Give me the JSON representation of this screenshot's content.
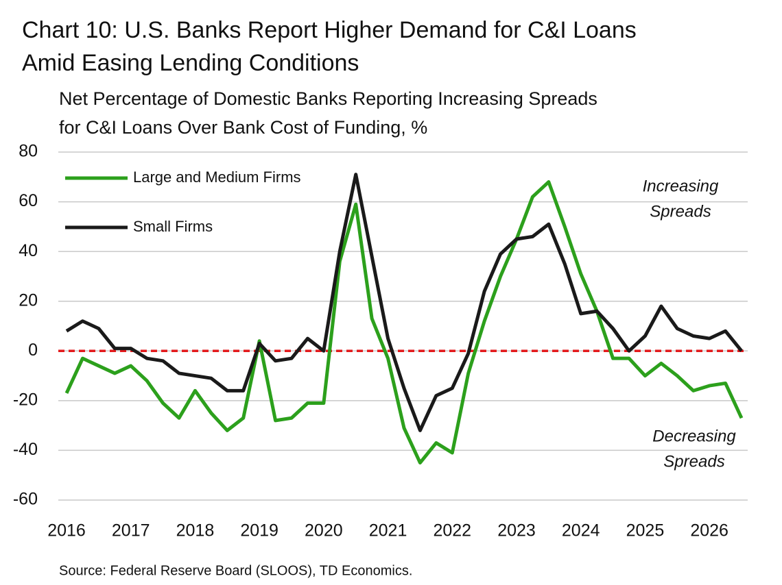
{
  "chart_data": {
    "type": "line",
    "title": [
      "Chart 10: U.S. Banks Report Higher Demand for C&I Loans",
      "Amid Easing Lending Conditions"
    ],
    "subtitle": [
      "Net Percentage of Domestic Banks Reporting Increasing Spreads",
      "for C&I Loans Over Bank Cost of Funding, %"
    ],
    "source": "Source: Federal Reserve Board (SLOOS), TD Economics.",
    "annotations": [
      {
        "text": [
          "Increasing",
          "Spreads"
        ]
      },
      {
        "text": [
          "Decreasing",
          "Spreads"
        ]
      }
    ],
    "x": [
      2016,
      2016.25,
      2016.5,
      2016.75,
      2017,
      2017.25,
      2017.5,
      2017.75,
      2018,
      2018.25,
      2018.5,
      2018.75,
      2019,
      2019.25,
      2019.5,
      2019.75,
      2020,
      2020.25,
      2020.5,
      2020.75,
      2021,
      2021.25,
      2021.5,
      2021.75,
      2022,
      2022.25,
      2022.5,
      2022.75,
      2023,
      2023.25,
      2023.5,
      2023.75,
      2024,
      2024.25,
      2024.5,
      2024.75,
      2025,
      2025.25,
      2025.5,
      2025.75,
      2026,
      2026.25,
      2026.5
    ],
    "series": [
      {
        "name": "Large and Medium Firms",
        "color": "#2ca01c",
        "values": [
          -17,
          -3,
          -6,
          -9,
          -6,
          -12,
          -21,
          -27,
          -16,
          -25,
          -32,
          -27,
          4,
          -28,
          -27,
          -21,
          -21,
          36,
          59,
          13,
          -3,
          -31,
          -45,
          -37,
          -41,
          -9,
          12,
          30,
          45,
          62,
          68,
          50,
          31,
          16,
          -3,
          -3,
          -10,
          -5,
          -10,
          -16,
          -14,
          -13,
          -27
        ]
      },
      {
        "name": "Small Firms",
        "color": "#1a1a1a",
        "values": [
          8,
          12,
          9,
          1,
          1,
          -3,
          -4,
          -9,
          -10,
          -11,
          -16,
          -16,
          3,
          -4,
          -3,
          5,
          0,
          40,
          71,
          38,
          5,
          -15,
          -32,
          -18,
          -15,
          -1,
          24,
          39,
          45,
          46,
          51,
          35,
          15,
          16,
          9,
          0,
          6,
          18,
          9,
          6,
          5,
          8,
          0
        ]
      }
    ],
    "reference_line": {
      "value": 0,
      "color": "#e31a1c",
      "style": "dashed"
    },
    "xlim": [
      2016,
      2026.5
    ],
    "xticks": [
      2016,
      2017,
      2018,
      2019,
      2020,
      2021,
      2022,
      2023,
      2024,
      2025,
      2026
    ],
    "ylim": [
      -60,
      80
    ],
    "yticks": [
      -60,
      -40,
      -20,
      0,
      20,
      40,
      60,
      80
    ],
    "grid": true,
    "legend": "upper left"
  }
}
